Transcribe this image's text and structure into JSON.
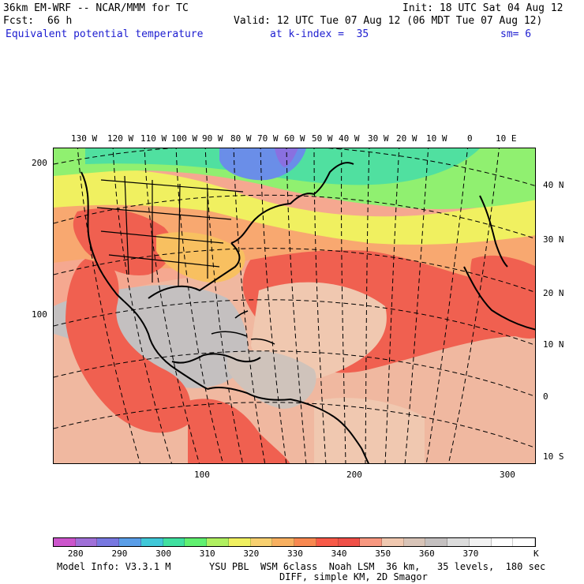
{
  "header": {
    "model_title": "36km EM-WRF -- NCAR/MMM for TC",
    "init": "Init: 18 UTC Sat 04 Aug 12",
    "fcst_label": "Fcst:",
    "fcst_value": "66 h",
    "valid": "Valid: 12 UTC Tue 07 Aug 12 (06 MDT Tue 07 Aug 12)",
    "field": "Equivalent potential temperature",
    "level": "at k-index =  35",
    "smoothing": "sm= 6"
  },
  "map": {
    "top_lon_labels": [
      "130 W",
      "120 W",
      "110 W",
      "100 W",
      "90 W",
      "80 W",
      "70 W",
      "60 W",
      "50 W",
      "40 W",
      "30 W",
      "20 W",
      "10 W",
      "0",
      "10 E"
    ],
    "right_lat_labels": [
      "40 N",
      "30 N",
      "20 N",
      "10 N",
      "0",
      "10 S"
    ],
    "left_grid_labels": [
      "200",
      "100"
    ],
    "bottom_grid_labels": [
      "100",
      "200",
      "300"
    ]
  },
  "colorbar": {
    "colors": [
      "#cc55cc",
      "#a070d8",
      "#7878e0",
      "#5a9ee8",
      "#40c8d8",
      "#40e0a0",
      "#60f070",
      "#b0f060",
      "#f0f060",
      "#f8d070",
      "#f8b060",
      "#f88850",
      "#f85a48",
      "#f05048",
      "#f89880",
      "#f0c8b0",
      "#d8c4b8",
      "#c4c0c0",
      "#dcdcdc",
      "#f2f2f2",
      "#ffffff",
      "#ffffff"
    ],
    "labels": [
      "280",
      "290",
      "300",
      "310",
      "320",
      "330",
      "340",
      "350",
      "360",
      "370"
    ],
    "unit": "K"
  },
  "footer": {
    "line1_left": "Model Info: V3.3.1 M",
    "line1_right": "YSU PBL  WSM 6class  Noah LSM  36 km,   35 levels,  180 sec",
    "line2": "DIFF, simple KM, 2D Smagor"
  }
}
